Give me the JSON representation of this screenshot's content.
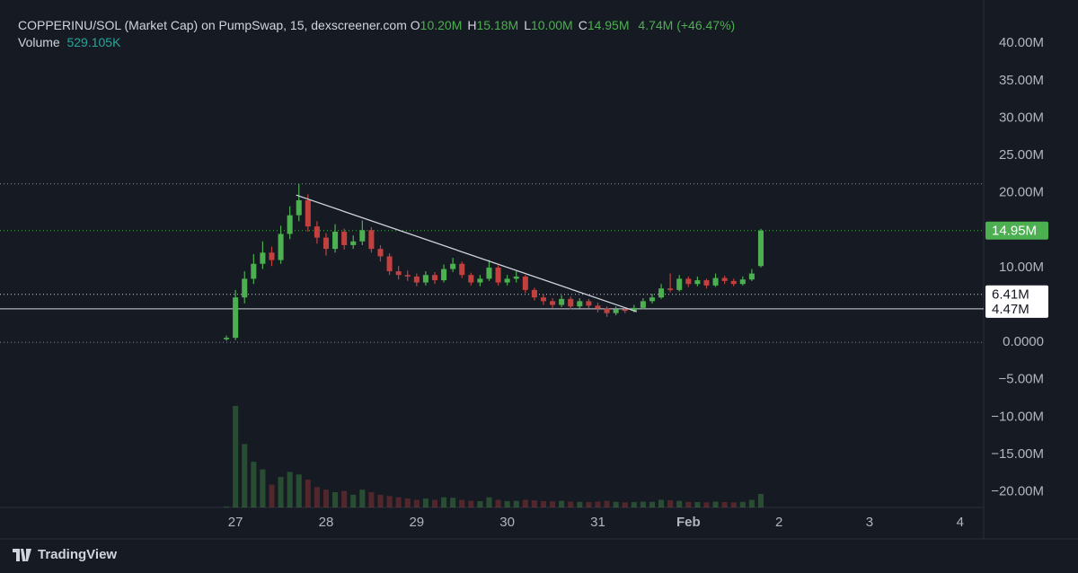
{
  "chart_data": {
    "type": "candlestick",
    "legend": {
      "title": "COPPERINU/SOL (Market Cap) on PumpSwap, 15, dexscreener.com",
      "ohlc": [
        {
          "label": "O",
          "value": "10.20M"
        },
        {
          "label": "H",
          "value": "15.18M"
        },
        {
          "label": "L",
          "value": "10.00M"
        },
        {
          "label": "C",
          "value": "14.95M"
        }
      ],
      "change": "4.74M (+46.47%)",
      "volume_label": "Volume",
      "volume_value": "529.105K"
    },
    "brand": "TradingView",
    "x": [
      26.9,
      27.0,
      27.1,
      27.2,
      27.3,
      27.4,
      27.5,
      27.6,
      27.7,
      27.8,
      27.9,
      28.0,
      28.1,
      28.2,
      28.3,
      28.4,
      28.5,
      28.6,
      28.7,
      28.8,
      28.9,
      29.0,
      29.1,
      29.2,
      29.3,
      29.4,
      29.5,
      29.6,
      29.7,
      29.8,
      29.9,
      30.0,
      30.1,
      30.2,
      30.3,
      30.4,
      30.5,
      30.6,
      30.7,
      30.8,
      30.9,
      31.0,
      31.1,
      31.2,
      31.3,
      31.4,
      31.5,
      31.6,
      31.7,
      31.8,
      31.9,
      32.0,
      32.1,
      32.2,
      32.3,
      32.4,
      32.5,
      32.6,
      32.7,
      32.8
    ],
    "open": [
      0.4,
      0.6,
      6.0,
      8.5,
      10.5,
      12.0,
      11.0,
      14.5,
      17.0,
      19.0,
      15.5,
      14.0,
      12.5,
      14.8,
      13.0,
      13.5,
      15.0,
      12.5,
      11.5,
      9.5,
      9.0,
      8.8,
      8.0,
      9.0,
      8.3,
      9.8,
      10.5,
      9.0,
      8.0,
      8.5,
      10.0,
      8.0,
      8.5,
      8.8,
      7.0,
      6.0,
      5.5,
      5.0,
      5.8,
      4.8,
      5.5,
      4.9,
      4.5,
      3.9,
      4.4,
      4.2,
      4.6,
      5.5,
      6.0,
      7.2,
      7.0,
      8.5,
      7.8,
      8.3,
      7.6,
      8.6,
      8.2,
      7.8,
      8.4,
      10.2
    ],
    "high": [
      0.9,
      7.0,
      9.5,
      11.8,
      13.5,
      12.8,
      15.6,
      18.2,
      21.2,
      19.8,
      16.2,
      14.6,
      15.8,
      15.2,
      14.3,
      16.3,
      15.4,
      13.0,
      11.9,
      10.2,
      9.6,
      9.2,
      9.5,
      9.4,
      10.4,
      11.3,
      10.8,
      9.3,
      9.0,
      11.0,
      10.3,
      9.0,
      9.5,
      9.0,
      7.3,
      6.4,
      5.9,
      6.3,
      6.1,
      5.9,
      5.8,
      5.3,
      4.8,
      4.8,
      4.7,
      5.0,
      5.9,
      6.5,
      7.8,
      9.2,
      9.0,
      8.8,
      8.8,
      8.5,
      9.2,
      8.9,
      8.5,
      8.8,
      9.8,
      15.18
    ],
    "low": [
      0.2,
      0.3,
      5.2,
      7.8,
      9.8,
      10.2,
      10.5,
      13.8,
      16.2,
      14.8,
      13.2,
      11.6,
      12.0,
      12.4,
      12.5,
      13.0,
      12.0,
      10.8,
      9.0,
      8.4,
      8.2,
      7.5,
      7.6,
      7.8,
      8.0,
      9.4,
      8.6,
      7.6,
      7.5,
      8.2,
      7.6,
      7.6,
      8.0,
      6.6,
      5.6,
      5.0,
      4.6,
      4.7,
      4.4,
      4.5,
      4.5,
      4.0,
      3.4,
      3.6,
      3.9,
      4.0,
      4.4,
      5.2,
      5.8,
      6.7,
      6.8,
      7.4,
      7.5,
      7.2,
      7.4,
      7.8,
      7.5,
      7.6,
      8.2,
      10.0
    ],
    "close": [
      0.6,
      6.0,
      8.5,
      10.5,
      12.0,
      11.0,
      14.5,
      17.0,
      19.0,
      15.5,
      14.0,
      12.5,
      14.8,
      13.0,
      13.5,
      15.0,
      12.5,
      11.5,
      9.5,
      9.0,
      8.8,
      8.0,
      9.0,
      8.3,
      9.8,
      10.5,
      9.0,
      8.0,
      8.5,
      10.0,
      8.0,
      8.5,
      8.8,
      7.0,
      6.0,
      5.5,
      5.0,
      5.8,
      4.8,
      5.5,
      4.9,
      4.5,
      3.9,
      4.4,
      4.2,
      4.6,
      5.5,
      6.0,
      7.2,
      7.0,
      8.5,
      7.8,
      8.3,
      7.6,
      8.6,
      8.2,
      7.8,
      8.4,
      9.2,
      14.95
    ],
    "volume": [
      30,
      4000,
      2500,
      1800,
      1500,
      900,
      1200,
      1400,
      1300,
      1100,
      800,
      700,
      600,
      650,
      500,
      700,
      600,
      500,
      450,
      400,
      350,
      300,
      350,
      300,
      400,
      380,
      300,
      260,
      250,
      400,
      300,
      250,
      260,
      300,
      280,
      250,
      240,
      260,
      230,
      220,
      210,
      230,
      260,
      220,
      200,
      210,
      230,
      220,
      300,
      280,
      260,
      220,
      210,
      200,
      230,
      210,
      200,
      220,
      300,
      529.105
    ],
    "volume_ylim": [
      0,
      20000
    ],
    "up_color": "#4caf50",
    "down_color": "#c2413f",
    "xlim": [
      24.4,
      35.26
    ],
    "xticks": [
      27,
      28,
      29,
      30,
      31,
      {
        "value": 32,
        "label": "Feb"
      },
      {
        "value": 33,
        "label": "2"
      },
      {
        "value": 34,
        "label": "3"
      },
      {
        "value": 35,
        "label": "4"
      }
    ],
    "ylim": [
      -22.1,
      45.8
    ],
    "yticks": [
      {
        "value": 40,
        "label": "40.00M"
      },
      {
        "value": 35,
        "label": "35.00M"
      },
      {
        "value": 30,
        "label": "30.00M"
      },
      {
        "value": 25,
        "label": "25.00M"
      },
      {
        "value": 20,
        "label": "20.00M"
      },
      {
        "value": 10,
        "label": "10.00M"
      },
      {
        "value": 0,
        "label": "0.0000"
      },
      {
        "value": -5,
        "label": "−5.00M"
      },
      {
        "value": -10,
        "label": "−10.00M"
      },
      {
        "value": -15,
        "label": "−15.00M"
      },
      {
        "value": -20,
        "label": "−20.00M"
      }
    ],
    "price_lines": [
      {
        "value": 21.2,
        "style": "dotted",
        "color": "#8a8e99"
      },
      {
        "value": 14.95,
        "label": "14.95M",
        "style": "dotted",
        "color": "#4caf50"
      },
      {
        "value": 6.41,
        "label": "6.41M",
        "style": "dotted",
        "color": "#d1d4dc"
      },
      {
        "value": 4.47,
        "label": "4.47M",
        "style": "solid",
        "color": "#d1d4dc"
      },
      {
        "value": 0,
        "style": "dotted",
        "color": "#8a8e99"
      }
    ],
    "trendline": {
      "x": [
        27.67,
        31.43
      ],
      "y": [
        19.7,
        4.09
      ],
      "color": "#d1d4dc"
    }
  }
}
